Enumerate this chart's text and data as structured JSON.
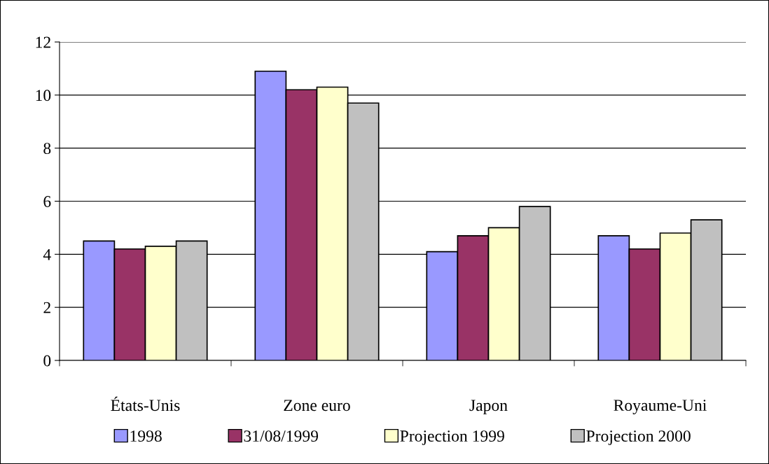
{
  "chart_data": {
    "type": "bar",
    "categories": [
      "États-Unis",
      "Zone euro",
      "Japon",
      "Royaume-Uni"
    ],
    "series": [
      {
        "name": "1998",
        "color": "#9999ff",
        "values": [
          4.5,
          10.9,
          4.1,
          4.7
        ]
      },
      {
        "name": "31/08/1999",
        "color": "#993366",
        "values": [
          4.2,
          10.2,
          4.7,
          4.2
        ]
      },
      {
        "name": "Projection 1999",
        "color": "#ffffcc",
        "values": [
          4.3,
          10.3,
          5.0,
          4.8
        ]
      },
      {
        "name": "Projection 2000",
        "color": "#c0c0c0",
        "values": [
          4.5,
          9.7,
          5.8,
          5.3
        ]
      }
    ],
    "ylim": [
      0,
      12
    ],
    "yticks": [
      0,
      2,
      4,
      6,
      8,
      10,
      12
    ],
    "grid": "y",
    "legend": "bottom"
  }
}
